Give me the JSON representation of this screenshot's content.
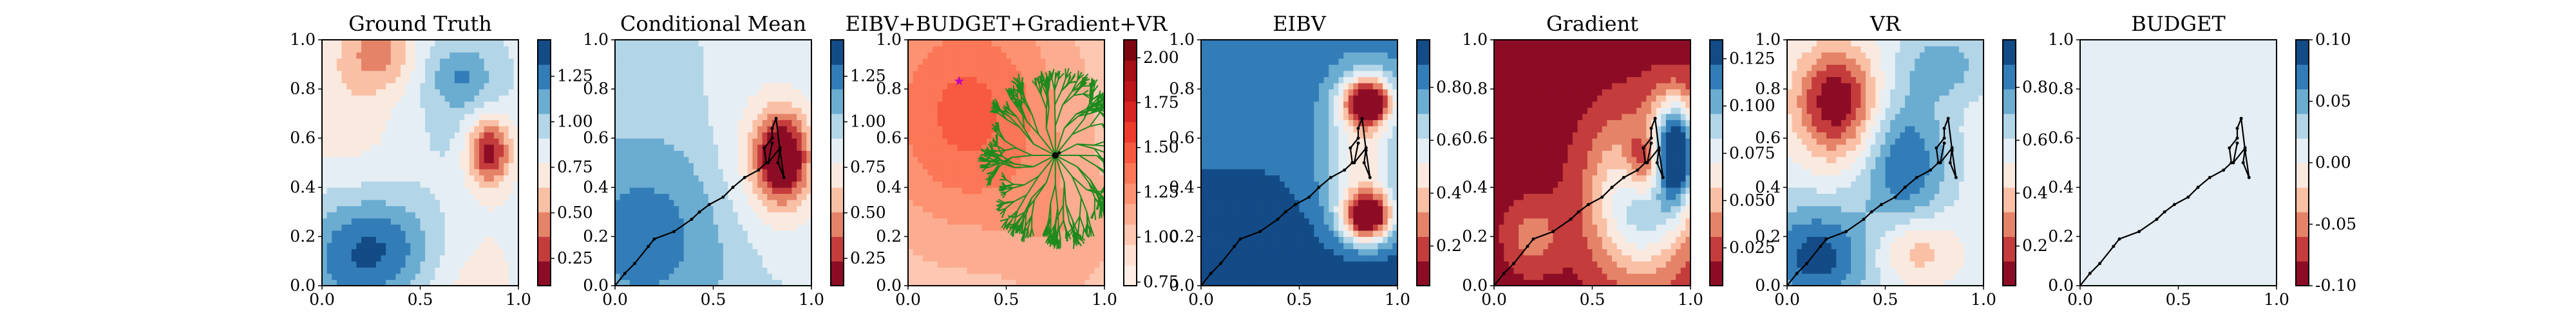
{
  "chart_data": [
    {
      "type": "heatmap",
      "title": "Ground Truth",
      "xlim": [
        0,
        1
      ],
      "ylim": [
        0,
        1
      ],
      "xticks": [
        "0.0",
        "0.5",
        "1.0"
      ],
      "yticks": [
        "0.0",
        "0.2",
        "0.4",
        "0.6",
        "0.8",
        "1.0"
      ],
      "colorbar": {
        "range": [
          0.1,
          1.45
        ],
        "ticks": [
          "0.25",
          "0.50",
          "0.75",
          "1.00",
          "1.25"
        ],
        "cmap": "RdBu"
      },
      "field": "truth",
      "path": []
    },
    {
      "type": "heatmap",
      "title": "Conditional Mean",
      "xlim": [
        0,
        1
      ],
      "ylim": [
        0,
        1
      ],
      "xticks": [
        "0.0",
        "0.5",
        "1.0"
      ],
      "yticks": [
        "0.0",
        "0.2",
        "0.4",
        "0.6",
        "0.8",
        "1.0"
      ],
      "colorbar": {
        "range": [
          0.1,
          1.45
        ],
        "ticks": [
          "0.25",
          "0.50",
          "0.75",
          "1.00",
          "1.25"
        ],
        "cmap": "RdBu"
      },
      "field": "mean",
      "path": [
        [
          0,
          0
        ],
        [
          0.05,
          0.05
        ],
        [
          0.1,
          0.09
        ],
        [
          0.17,
          0.16
        ],
        [
          0.2,
          0.19
        ],
        [
          0.3,
          0.22
        ],
        [
          0.39,
          0.27
        ],
        [
          0.43,
          0.3
        ],
        [
          0.48,
          0.33
        ],
        [
          0.55,
          0.36
        ],
        [
          0.6,
          0.4
        ],
        [
          0.66,
          0.44
        ],
        [
          0.73,
          0.47
        ],
        [
          0.77,
          0.5
        ],
        [
          0.76,
          0.56
        ],
        [
          0.8,
          0.6
        ],
        [
          0.8,
          0.64
        ],
        [
          0.82,
          0.68
        ],
        [
          0.84,
          0.55
        ],
        [
          0.86,
          0.44
        ],
        [
          0.83,
          0.5
        ],
        [
          0.84,
          0.56
        ],
        [
          0.78,
          0.5
        ],
        [
          0.8,
          0.58
        ]
      ]
    },
    {
      "type": "heatmap",
      "title": "EIBV+BUDGET+Gradient+VR",
      "xlim": [
        0,
        1
      ],
      "ylim": [
        0,
        1
      ],
      "xticks": [
        "0.0",
        "0.5",
        "1.0"
      ],
      "yticks": [
        "0.0",
        "0.2",
        "0.4",
        "0.6",
        "0.8",
        "1.0"
      ],
      "colorbar": {
        "range": [
          0.73,
          2.1
        ],
        "ticks": [
          "0.75",
          "1.00",
          "1.25",
          "1.50",
          "1.75",
          "2.00"
        ],
        "cmap": "Reds"
      },
      "field": "cost",
      "tree_root": [
        0.75,
        0.53
      ],
      "target": [
        0.26,
        0.83
      ],
      "path": [
        [
          0.75,
          0.53
        ],
        [
          0.77,
          0.54
        ]
      ]
    },
    {
      "type": "heatmap",
      "title": "EIBV",
      "xlim": [
        0,
        1
      ],
      "ylim": [
        0,
        1
      ],
      "xticks": [
        "0.0",
        "0.5",
        "1.0"
      ],
      "yticks": [
        "0.0",
        "0.2",
        "0.4",
        "0.6",
        "0.8",
        "1.0"
      ],
      "colorbar": {
        "range": [
          0.05,
          0.98
        ],
        "ticks": [
          "0.2",
          "0.4",
          "0.6",
          "0.8"
        ],
        "cmap": "RdBu"
      },
      "field": "eibv",
      "path": [
        [
          0,
          0
        ],
        [
          0.05,
          0.05
        ],
        [
          0.1,
          0.09
        ],
        [
          0.17,
          0.16
        ],
        [
          0.2,
          0.19
        ],
        [
          0.3,
          0.22
        ],
        [
          0.39,
          0.27
        ],
        [
          0.43,
          0.3
        ],
        [
          0.48,
          0.33
        ],
        [
          0.55,
          0.36
        ],
        [
          0.6,
          0.4
        ],
        [
          0.66,
          0.44
        ],
        [
          0.73,
          0.47
        ],
        [
          0.77,
          0.5
        ],
        [
          0.76,
          0.56
        ],
        [
          0.8,
          0.6
        ],
        [
          0.8,
          0.64
        ],
        [
          0.82,
          0.68
        ],
        [
          0.84,
          0.55
        ],
        [
          0.86,
          0.44
        ],
        [
          0.83,
          0.5
        ],
        [
          0.84,
          0.56
        ],
        [
          0.78,
          0.5
        ],
        [
          0.8,
          0.58
        ]
      ]
    },
    {
      "type": "heatmap",
      "title": "Gradient",
      "xlim": [
        0,
        1
      ],
      "ylim": [
        0,
        1
      ],
      "xticks": [
        "0.0",
        "0.5",
        "1.0"
      ],
      "yticks": [
        "0.0",
        "0.2",
        "0.4",
        "0.6",
        "0.8",
        "1.0"
      ],
      "colorbar": {
        "range": [
          0.005,
          0.135
        ],
        "ticks": [
          "0.025",
          "0.050",
          "0.075",
          "0.100",
          "0.125"
        ],
        "cmap": "RdBu"
      },
      "field": "grad",
      "path": [
        [
          0,
          0
        ],
        [
          0.05,
          0.05
        ],
        [
          0.1,
          0.09
        ],
        [
          0.17,
          0.16
        ],
        [
          0.2,
          0.19
        ],
        [
          0.3,
          0.22
        ],
        [
          0.39,
          0.27
        ],
        [
          0.43,
          0.3
        ],
        [
          0.48,
          0.33
        ],
        [
          0.55,
          0.36
        ],
        [
          0.6,
          0.4
        ],
        [
          0.66,
          0.44
        ],
        [
          0.73,
          0.47
        ],
        [
          0.77,
          0.5
        ],
        [
          0.76,
          0.56
        ],
        [
          0.8,
          0.6
        ],
        [
          0.8,
          0.64
        ],
        [
          0.82,
          0.68
        ],
        [
          0.84,
          0.55
        ],
        [
          0.86,
          0.44
        ],
        [
          0.83,
          0.5
        ],
        [
          0.84,
          0.56
        ],
        [
          0.78,
          0.5
        ],
        [
          0.8,
          0.58
        ]
      ]
    },
    {
      "type": "heatmap",
      "title": "VR",
      "xlim": [
        0,
        1
      ],
      "ylim": [
        0,
        1
      ],
      "xticks": [
        "0.0",
        "0.5",
        "1.0"
      ],
      "yticks": [
        "0.0",
        "0.2",
        "0.4",
        "0.6",
        "0.8",
        "1.0"
      ],
      "colorbar": {
        "range": [
          0.05,
          0.98
        ],
        "ticks": [
          "0.2",
          "0.4",
          "0.6",
          "0.8"
        ],
        "cmap": "RdBu"
      },
      "field": "vr",
      "path": [
        [
          0,
          0
        ],
        [
          0.05,
          0.05
        ],
        [
          0.1,
          0.09
        ],
        [
          0.17,
          0.16
        ],
        [
          0.2,
          0.19
        ],
        [
          0.3,
          0.22
        ],
        [
          0.39,
          0.27
        ],
        [
          0.43,
          0.3
        ],
        [
          0.48,
          0.33
        ],
        [
          0.55,
          0.36
        ],
        [
          0.6,
          0.4
        ],
        [
          0.66,
          0.44
        ],
        [
          0.73,
          0.47
        ],
        [
          0.77,
          0.5
        ],
        [
          0.76,
          0.56
        ],
        [
          0.8,
          0.6
        ],
        [
          0.8,
          0.64
        ],
        [
          0.82,
          0.68
        ],
        [
          0.84,
          0.55
        ],
        [
          0.86,
          0.44
        ],
        [
          0.83,
          0.5
        ],
        [
          0.84,
          0.56
        ],
        [
          0.78,
          0.5
        ],
        [
          0.8,
          0.58
        ]
      ]
    },
    {
      "type": "heatmap",
      "title": "BUDGET",
      "xlim": [
        0,
        1
      ],
      "ylim": [
        0,
        1
      ],
      "xticks": [
        "0.0",
        "0.5",
        "1.0"
      ],
      "yticks": [
        "0.0",
        "0.2",
        "0.4",
        "0.6",
        "0.8",
        "1.0"
      ],
      "colorbar": {
        "range": [
          -0.1,
          0.1
        ],
        "ticks": [
          "-0.10",
          "-0.05",
          "0.00",
          "0.05",
          "0.10"
        ],
        "cmap": "RdBu"
      },
      "field": "budget",
      "path": [
        [
          0,
          0
        ],
        [
          0.05,
          0.05
        ],
        [
          0.1,
          0.09
        ],
        [
          0.17,
          0.16
        ],
        [
          0.2,
          0.19
        ],
        [
          0.3,
          0.22
        ],
        [
          0.39,
          0.27
        ],
        [
          0.43,
          0.3
        ],
        [
          0.48,
          0.33
        ],
        [
          0.55,
          0.36
        ],
        [
          0.6,
          0.4
        ],
        [
          0.66,
          0.44
        ],
        [
          0.73,
          0.47
        ],
        [
          0.77,
          0.5
        ],
        [
          0.76,
          0.56
        ],
        [
          0.8,
          0.6
        ],
        [
          0.8,
          0.64
        ],
        [
          0.82,
          0.68
        ],
        [
          0.84,
          0.55
        ],
        [
          0.86,
          0.44
        ],
        [
          0.83,
          0.5
        ],
        [
          0.84,
          0.56
        ],
        [
          0.78,
          0.5
        ],
        [
          0.8,
          0.58
        ]
      ]
    }
  ]
}
